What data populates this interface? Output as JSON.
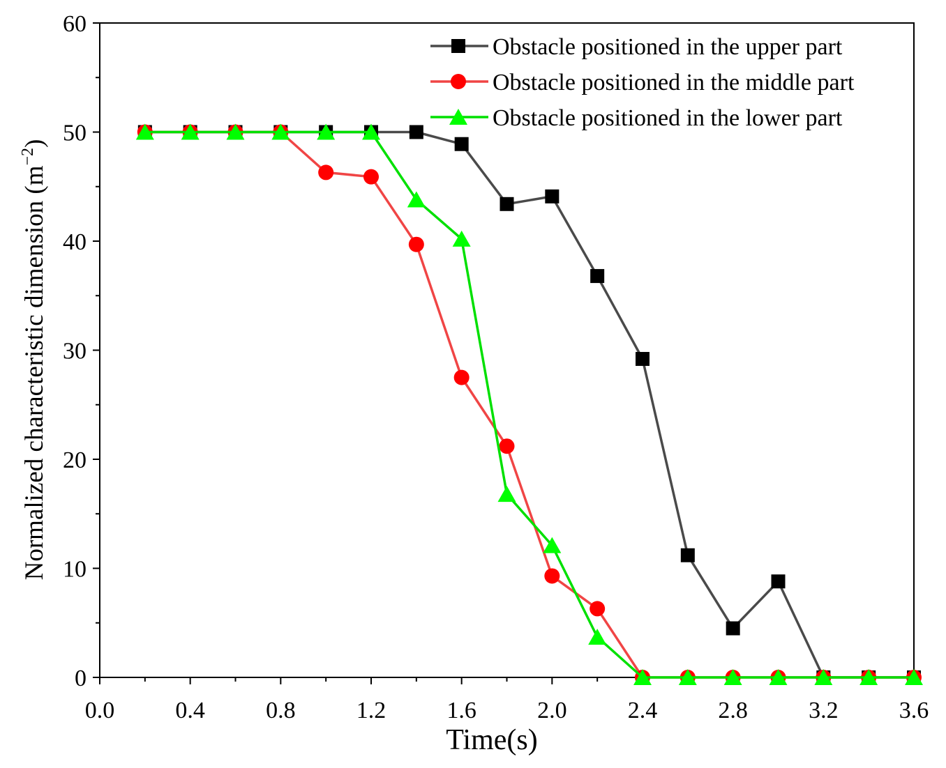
{
  "chart_data": {
    "type": "line",
    "title": "",
    "xlabel": "Time(s)",
    "ylabel": {
      "text": "Normalized characteristic dimension (m",
      "superscript": "−2",
      "suffix": ")"
    },
    "xlim": [
      0.0,
      3.6
    ],
    "ylim": [
      0,
      60
    ],
    "xticks": [
      "0.0",
      "0.4",
      "0.8",
      "1.2",
      "1.6",
      "2.0",
      "2.4",
      "2.8",
      "3.2",
      "3.6"
    ],
    "yticks": [
      "0",
      "10",
      "20",
      "30",
      "40",
      "50",
      "60"
    ],
    "grid": false,
    "legend_position": "top-right",
    "x": [
      0.2,
      0.4,
      0.6,
      0.8,
      1.0,
      1.2,
      1.4,
      1.6,
      1.8,
      2.0,
      2.2,
      2.4,
      2.6,
      2.8,
      3.0,
      3.2,
      3.4,
      3.6
    ],
    "series": [
      {
        "name": "Obstacle positioned in the upper part",
        "key": "upper",
        "marker": "square",
        "line_color": "#4a4a4a",
        "marker_color": "#000000",
        "values": [
          50,
          50,
          50,
          50,
          50,
          50,
          50,
          48.9,
          43.4,
          44.1,
          36.8,
          29.2,
          11.2,
          4.5,
          8.8,
          0,
          0,
          0
        ]
      },
      {
        "name": "Obstacle positioned in the middle part",
        "key": "middle",
        "marker": "circle",
        "line_color": "#f04545",
        "marker_color": "#ff0000",
        "values": [
          50,
          50,
          50,
          50,
          46.3,
          45.9,
          39.7,
          27.5,
          21.2,
          9.3,
          6.3,
          0,
          0,
          0,
          0,
          0,
          0,
          0
        ]
      },
      {
        "name": "Obstacle positioned in the lower part",
        "key": "lower",
        "marker": "triangle",
        "line_color": "#00e000",
        "marker_color": "#00ff00",
        "values": [
          50,
          50,
          50,
          50,
          50,
          50,
          43.8,
          40.2,
          16.8,
          12.1,
          3.7,
          0,
          0,
          0,
          0,
          0,
          0,
          0
        ]
      }
    ]
  }
}
